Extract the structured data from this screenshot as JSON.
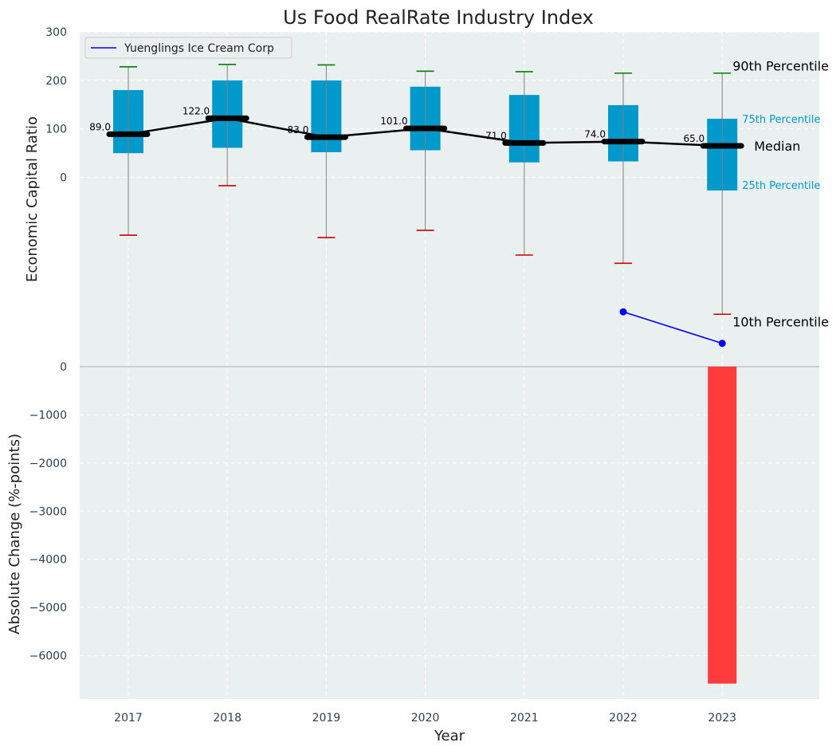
{
  "chart_data": {
    "type": "box",
    "title": "Us Food RealRate Industry Index",
    "xlabel": "Year",
    "categories": [
      "2017",
      "2018",
      "2019",
      "2020",
      "2021",
      "2022",
      "2023"
    ],
    "top_panel": {
      "ylabel": "Economic Capital Ratio",
      "ylim": [
        -390,
        300
      ],
      "yticks": [
        0,
        100,
        200,
        300
      ],
      "boxes": [
        {
          "year": "2017",
          "p10": -119,
          "p25": 50,
          "median": 89,
          "p75": 180,
          "p90": 228
        },
        {
          "year": "2018",
          "p10": -17,
          "p25": 61,
          "median": 122,
          "p75": 200,
          "p90": 233
        },
        {
          "year": "2019",
          "p10": -124,
          "p25": 52,
          "median": 83,
          "p75": 200,
          "p90": 232
        },
        {
          "year": "2020",
          "p10": -109,
          "p25": 56,
          "median": 101,
          "p75": 187,
          "p90": 219
        },
        {
          "year": "2021",
          "p10": -160,
          "p25": 31,
          "median": 71,
          "p75": 170,
          "p90": 218
        },
        {
          "year": "2022",
          "p10": -177,
          "p25": 33,
          "median": 74,
          "p75": 149,
          "p90": 215
        },
        {
          "year": "2023",
          "p10": -282,
          "p25": -27,
          "median": 65,
          "p75": 121,
          "p90": 215
        }
      ],
      "median_labels": [
        "89.0",
        "122.0",
        "83.0",
        "101.0",
        "71.0",
        "74.0",
        "65.0"
      ],
      "company_series": {
        "name": "Yuenglings Ice Cream Corp",
        "color": "#0000ff",
        "points": [
          {
            "x": "2022",
            "y": -277
          },
          {
            "x": "2023",
            "y": -342
          }
        ]
      },
      "annotations": {
        "p90": "90th Percentile",
        "p75": "75th Percentile",
        "median": "Median",
        "p25": "25th Percentile",
        "p10": "10th Percentile"
      },
      "legend_position": "top-left"
    },
    "bottom_panel": {
      "type": "bar",
      "ylabel": "Absolute Change (%-points)",
      "ylim": [
        -6900,
        0
      ],
      "yticks": [
        0,
        -1000,
        -2000,
        -3000,
        -4000,
        -5000,
        -6000
      ],
      "ytick_labels": [
        "0",
        "−1000",
        "−2000",
        "−3000",
        "−4000",
        "−5000",
        "−6000"
      ],
      "bars": [
        {
          "x": "2023",
          "value": -6580
        }
      ]
    },
    "colors": {
      "box": "#0099cc",
      "median_line": "#000000",
      "whisker": "#808080",
      "cap_top": "#008000",
      "cap_bottom": "#cc0000",
      "bar": "#ff3b3b",
      "annotation_cyan": "#0099cc",
      "panel_bg": "#eaeff0",
      "grid": "#ffffff"
    },
    "grid": true
  }
}
